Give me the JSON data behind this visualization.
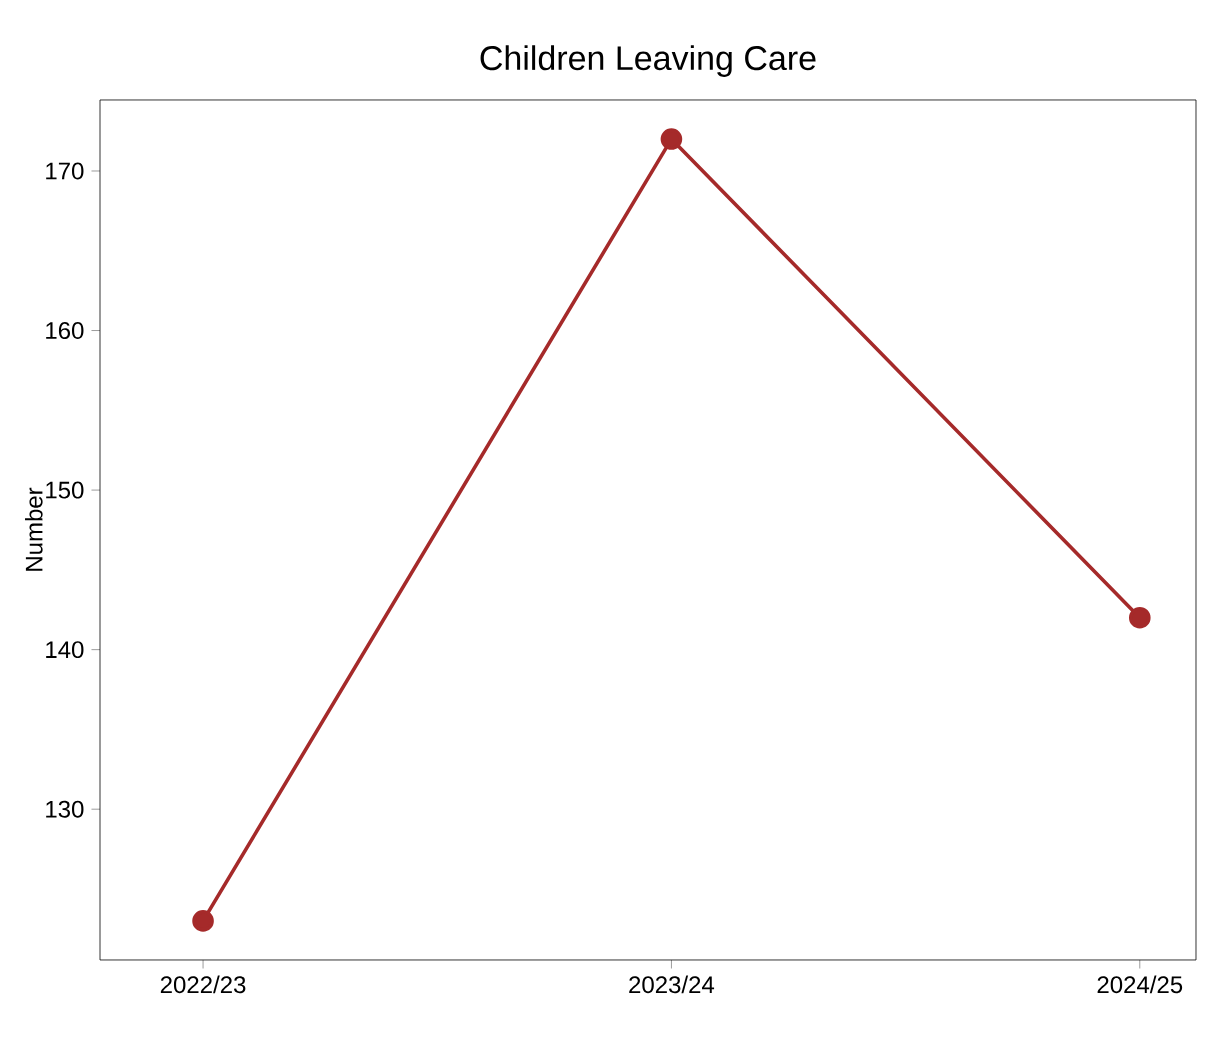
{
  "chart_data": {
    "type": "line",
    "title": "Children Leaving Care",
    "ylabel": "Number",
    "categories": [
      "2022/23",
      "2023/24",
      "2024/25"
    ],
    "values": [
      123,
      172,
      142
    ],
    "color": "#a52a2a",
    "marker": "circle",
    "line_style": "solid",
    "ylim": [
      120.55,
      174.45
    ],
    "yticks": [
      130,
      140,
      150,
      160,
      170
    ]
  }
}
